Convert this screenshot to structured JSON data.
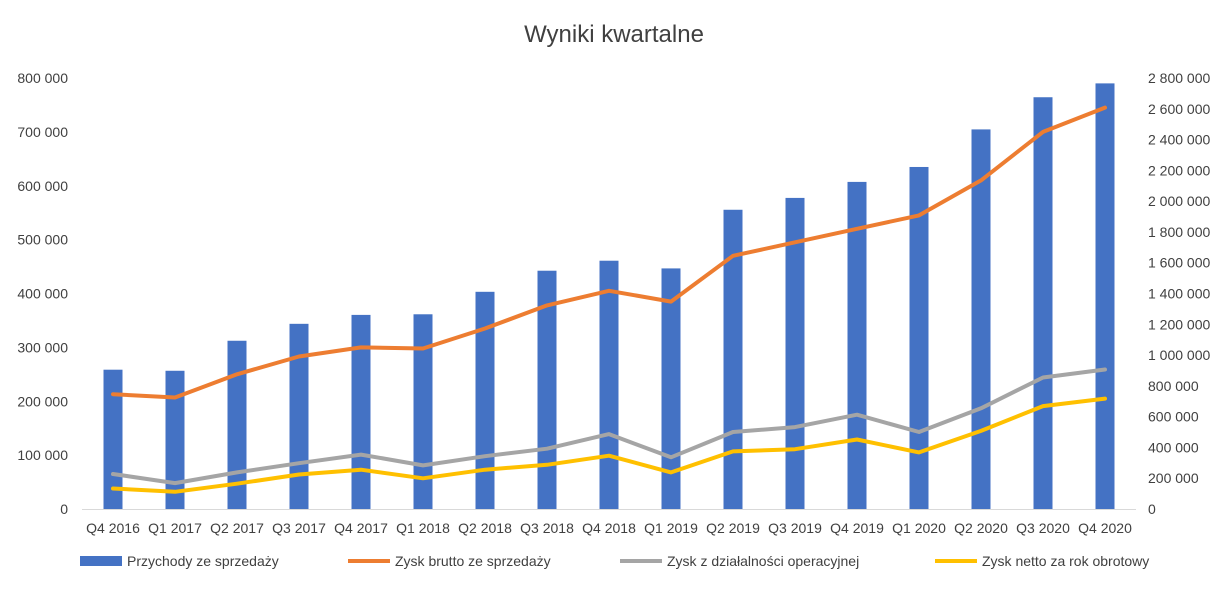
{
  "chart_data": {
    "type": "bar",
    "title": "Wyniki kwartalne",
    "categories": [
      "Q4 2016",
      "Q1 2017",
      "Q2 2017",
      "Q3 2017",
      "Q4 2017",
      "Q1 2018",
      "Q2 2018",
      "Q3 2018",
      "Q4 2018",
      "Q1 2019",
      "Q2 2019",
      "Q3 2019",
      "Q4 2019",
      "Q1 2020",
      "Q2 2020",
      "Q3 2020",
      "Q4 2020"
    ],
    "y_left": {
      "ylim": [
        0,
        800000
      ],
      "ticks": [
        "0",
        "100 000",
        "200 000",
        "300 000",
        "400 000",
        "500 000",
        "600 000",
        "700 000",
        "800 000"
      ]
    },
    "y_right": {
      "ylim": [
        0,
        2800000
      ],
      "ticks": [
        "0",
        "200 000",
        "400 000",
        "600 000",
        "800 000",
        "1 000 000",
        "1 200 000",
        "1 400 000",
        "1 600 000",
        "1 800 000",
        "2 000 000",
        "2 200 000",
        "2 400 000",
        "2 600 000",
        "2 800 000"
      ]
    },
    "series": [
      {
        "name": "Przychody ze sprzedaży",
        "type": "bar",
        "axis": "right",
        "color": "#4472C4",
        "values": [
          905000,
          898000,
          1093000,
          1203000,
          1261000,
          1265000,
          1411000,
          1548000,
          1613000,
          1563000,
          1944000,
          2021000,
          2125000,
          2222000,
          2466000,
          2675000,
          2765000
        ]
      },
      {
        "name": "Zysk brutto ze sprzedaży",
        "type": "line",
        "axis": "left",
        "color": "#ED7D31",
        "values": [
          213000,
          207000,
          250000,
          283000,
          300000,
          298000,
          335000,
          378000,
          405000,
          385000,
          470000,
          495000,
          520000,
          545000,
          610000,
          700000,
          745000
        ]
      },
      {
        "name": "Zysk z działalności operacyjnej",
        "type": "line",
        "axis": "left",
        "color": "#A5A5A5",
        "values": [
          65000,
          48000,
          68000,
          85000,
          101000,
          81000,
          98000,
          112000,
          139000,
          96000,
          143000,
          152000,
          175000,
          143000,
          187000,
          244000,
          259000
        ]
      },
      {
        "name": "Zysk netto za rok obrotowy",
        "type": "line",
        "axis": "left",
        "color": "#FFC000",
        "values": [
          38000,
          32000,
          47000,
          64000,
          73000,
          57000,
          73000,
          82000,
          99000,
          68000,
          107000,
          111000,
          129000,
          105000,
          145000,
          191000,
          205000
        ]
      }
    ],
    "legend_position": "bottom",
    "grid": false
  }
}
